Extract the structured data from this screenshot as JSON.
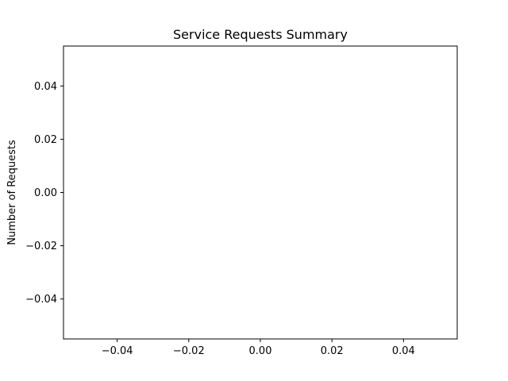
{
  "chart_data": {
    "type": "scatter",
    "title": "Service Requests Summary",
    "xlabel": "",
    "ylabel": "Number of Requests",
    "xlim": [
      -0.055,
      0.055
    ],
    "ylim": [
      -0.055,
      0.055
    ],
    "xticks": [
      -0.04,
      -0.02,
      0.0,
      0.02,
      0.04
    ],
    "xtick_labels": [
      "−0.04",
      "−0.02",
      "0.00",
      "0.02",
      "0.04"
    ],
    "yticks": [
      0.04,
      0.02,
      0.0,
      -0.02,
      -0.04
    ],
    "ytick_labels": [
      "0.04",
      "0.02",
      "0.00",
      "−0.02",
      "−0.04"
    ],
    "grid": false,
    "series": []
  },
  "colors": {
    "axis": "#000000",
    "background": "#ffffff"
  }
}
